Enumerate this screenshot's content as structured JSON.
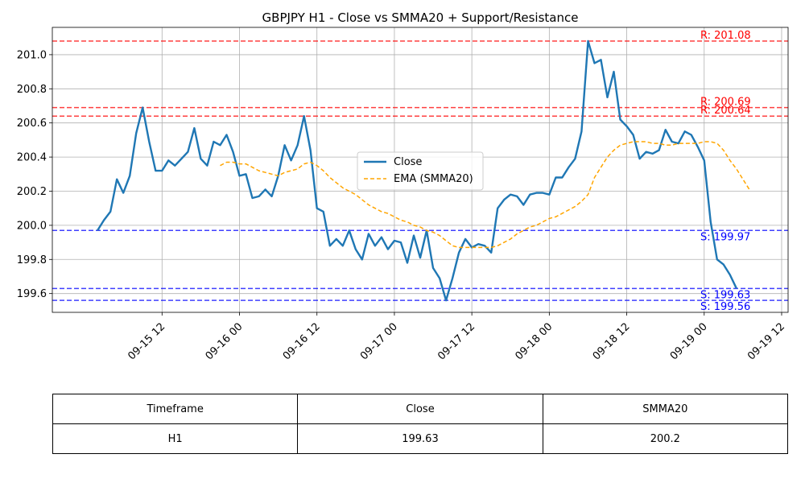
{
  "chart_data": {
    "type": "line",
    "title": "GBPJPY H1 - Close vs SMMA20 + Support/Resistance",
    "xlabel": "",
    "ylabel": "",
    "ylim": [
      199.49,
      201.16
    ],
    "xlim": [
      "2024-09-14 19:00",
      "2024-09-19 13:00"
    ],
    "grid": true,
    "legend_position": "center",
    "x_ticks": [
      "09-15 12",
      "09-16 00",
      "09-16 12",
      "09-17 00",
      "09-17 12",
      "09-18 00",
      "09-18 12",
      "09-19 00",
      "09-19 12"
    ],
    "y_ticks": [
      "199.6",
      "199.8",
      "200.0",
      "200.2",
      "200.4",
      "200.6",
      "200.8",
      "201.0"
    ],
    "series": [
      {
        "name": "Close",
        "color": "#1f77b4",
        "style": "solid",
        "x_start": "2024-09-15 02:00",
        "x_step_hours": 1,
        "values": [
          199.97,
          200.03,
          200.08,
          200.27,
          200.19,
          200.29,
          200.54,
          200.69,
          200.49,
          200.32,
          200.32,
          200.38,
          200.35,
          200.39,
          200.43,
          200.57,
          200.39,
          200.35,
          200.49,
          200.47,
          200.53,
          200.43,
          200.29,
          200.3,
          200.16,
          200.17,
          200.21,
          200.17,
          200.29,
          200.47,
          200.38,
          200.47,
          200.64,
          200.44,
          200.1,
          200.08,
          199.88,
          199.92,
          199.88,
          199.97,
          199.86,
          199.8,
          199.95,
          199.88,
          199.93,
          199.86,
          199.91,
          199.9,
          199.78,
          199.94,
          199.81,
          199.97,
          199.75,
          199.69,
          199.56,
          199.69,
          199.84,
          199.92,
          199.87,
          199.89,
          199.88,
          199.84,
          200.1,
          200.15,
          200.18,
          200.17,
          200.12,
          200.18,
          200.19,
          200.19,
          200.18,
          200.28,
          200.28,
          200.34,
          200.39,
          200.55,
          201.08,
          200.95,
          200.97,
          200.75,
          200.9,
          200.62,
          200.58,
          200.53,
          200.39,
          200.43,
          200.42,
          200.44,
          200.56,
          200.49,
          200.48,
          200.55,
          200.53,
          200.46,
          200.38,
          200.02,
          199.8,
          199.77,
          199.71,
          199.63
        ]
      },
      {
        "name": "EMA (SMMA20)",
        "color": "#ffa500",
        "style": "dashed",
        "x_start": "2024-09-15 21:00",
        "x_step_hours": 1,
        "values": [
          200.35,
          200.37,
          200.37,
          200.36,
          200.36,
          200.34,
          200.32,
          200.31,
          200.3,
          200.29,
          200.31,
          200.32,
          200.33,
          200.36,
          200.37,
          200.35,
          200.32,
          200.28,
          200.25,
          200.22,
          200.2,
          200.18,
          200.15,
          200.12,
          200.1,
          200.08,
          200.07,
          200.05,
          200.03,
          200.02,
          200.0,
          199.99,
          199.97,
          199.96,
          199.94,
          199.91,
          199.88,
          199.87,
          199.87,
          199.87,
          199.87,
          199.87,
          199.87,
          199.88,
          199.9,
          199.92,
          199.95,
          199.97,
          199.99,
          200.0,
          200.02,
          200.04,
          200.05,
          200.07,
          200.09,
          200.11,
          200.14,
          200.18,
          200.28,
          200.34,
          200.4,
          200.44,
          200.47,
          200.48,
          200.49,
          200.49,
          200.49,
          200.48,
          200.48,
          200.47,
          200.47,
          200.48,
          200.48,
          200.48,
          200.48,
          200.49,
          200.49,
          200.48,
          200.44,
          200.38,
          200.33,
          200.27,
          200.21
        ]
      }
    ],
    "levels": [
      {
        "kind": "resistance",
        "value": 201.08,
        "label": "R: 201.08",
        "color": "#ff0000"
      },
      {
        "kind": "resistance",
        "value": 200.69,
        "label": "R: 200.69",
        "color": "#ff0000"
      },
      {
        "kind": "resistance",
        "value": 200.64,
        "label": "R: 200.64",
        "color": "#ff0000"
      },
      {
        "kind": "support",
        "value": 199.97,
        "label": "S: 199.97",
        "color": "#0000ff"
      },
      {
        "kind": "support",
        "value": 199.63,
        "label": "S: 199.63",
        "color": "#0000ff"
      },
      {
        "kind": "support",
        "value": 199.56,
        "label": "S: 199.56",
        "color": "#0000ff"
      }
    ]
  },
  "table": {
    "headers": [
      "Timeframe",
      "Close",
      "SMMA20"
    ],
    "rows": [
      [
        "H1",
        "199.63",
        "200.2"
      ]
    ]
  }
}
